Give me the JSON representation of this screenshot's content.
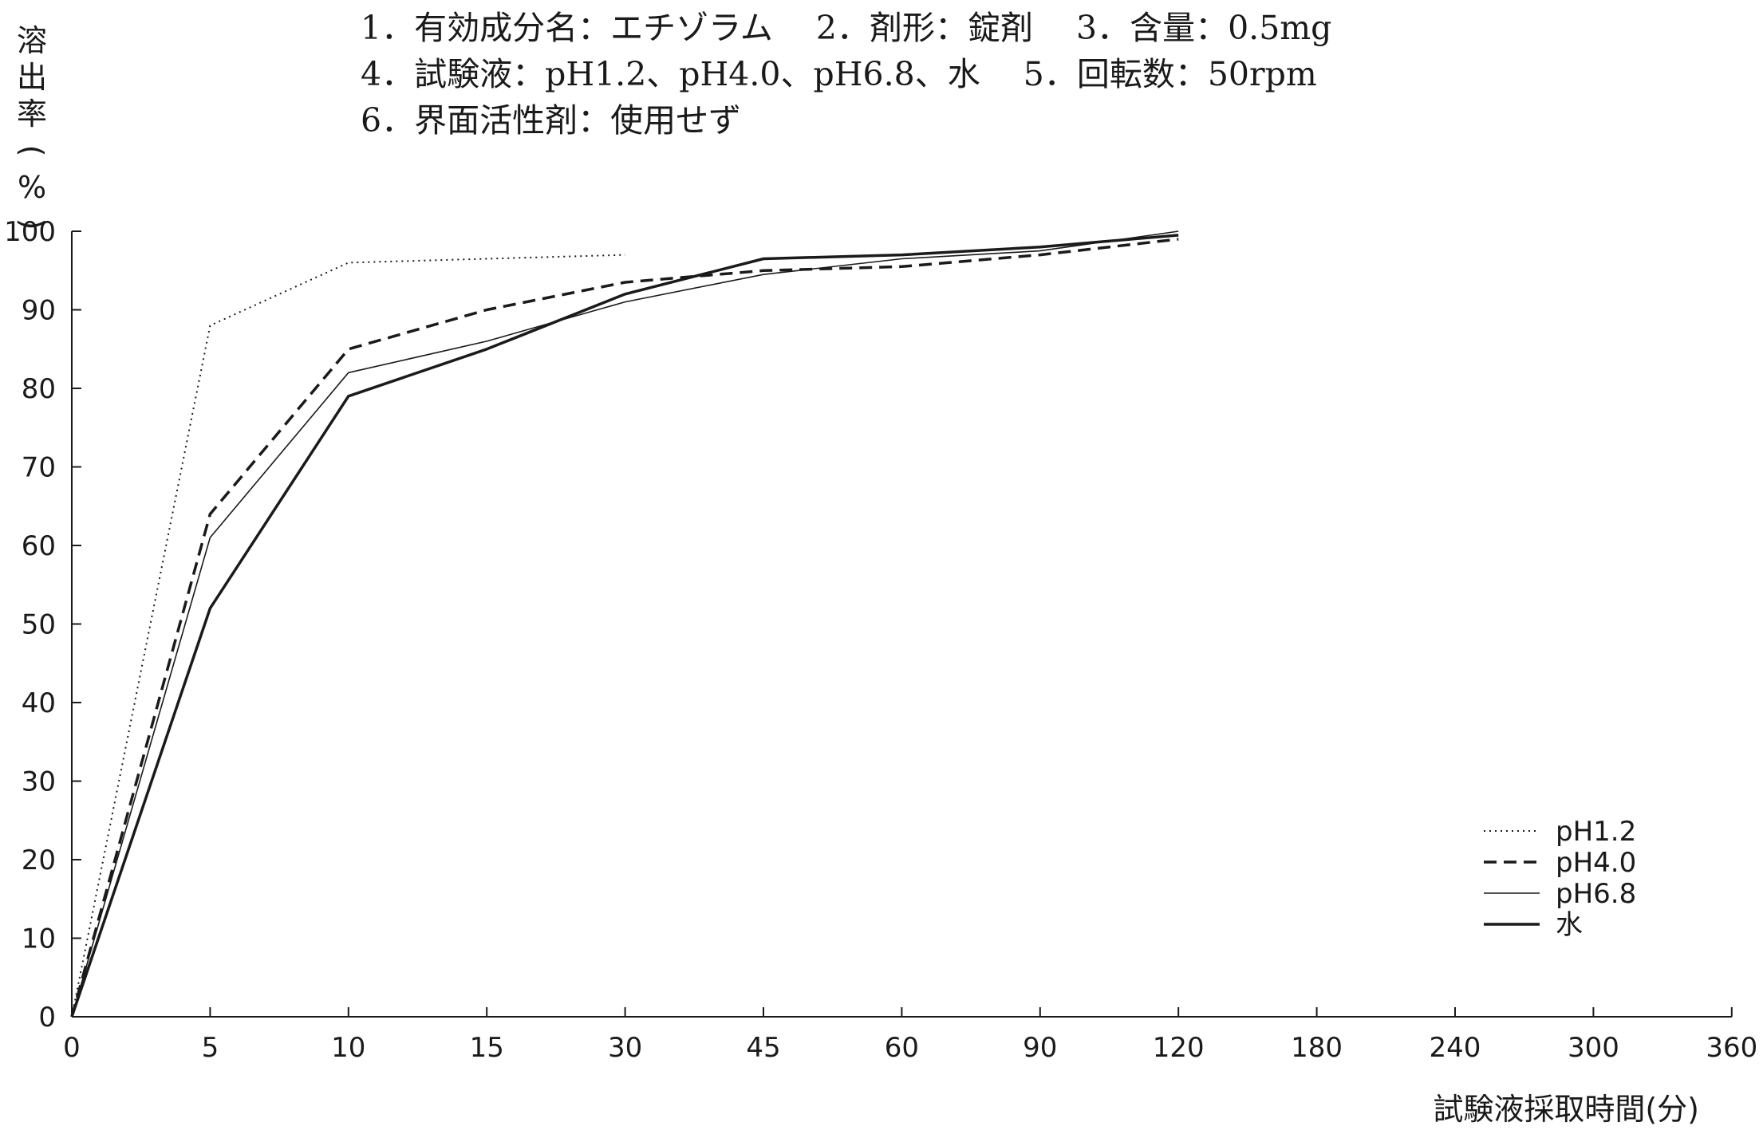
{
  "header": {
    "line1": "1．有効成分名：エチゾラム　 2．剤形：錠剤　 3．含量：0.5mg",
    "line2": "4．試験液：pH1.2、pH4.0、pH6.8、水　 5．回転数：50rpm",
    "line3": "6．界面活性剤：使用せず"
  },
  "chart_data": {
    "type": "line",
    "ylabel": [
      "溶",
      "出",
      "率",
      "(",
      "%",
      ")"
    ],
    "xlabel": "試験液採取時間(分)",
    "categories": [
      "0",
      "5",
      "10",
      "15",
      "30",
      "45",
      "60",
      "90",
      "120",
      "180",
      "240",
      "300",
      "360"
    ],
    "ylim": [
      0,
      100
    ],
    "yticks": [
      "0",
      "10",
      "20",
      "30",
      "40",
      "50",
      "60",
      "70",
      "80",
      "90",
      "100"
    ],
    "legend_position": "bottom-right",
    "series": [
      {
        "name": "pH1.2",
        "style": "dotted",
        "x": [
          "0",
          "5",
          "10",
          "30"
        ],
        "values": [
          0,
          88,
          96,
          97
        ]
      },
      {
        "name": "pH4.0",
        "style": "dashed",
        "x": [
          "0",
          "5",
          "10",
          "15",
          "30",
          "45",
          "60",
          "90",
          "120"
        ],
        "values": [
          0,
          64,
          85,
          90,
          93.5,
          95,
          95.5,
          97,
          99
        ]
      },
      {
        "name": "pH6.8",
        "style": "thin",
        "x": [
          "0",
          "5",
          "10",
          "15",
          "30",
          "45",
          "60",
          "90",
          "120"
        ],
        "values": [
          0,
          61,
          82,
          86,
          91,
          94.5,
          96.5,
          97.5,
          100
        ]
      },
      {
        "name": "水",
        "style": "thick",
        "x": [
          "0",
          "5",
          "10",
          "15",
          "30",
          "45",
          "60",
          "90",
          "120"
        ],
        "values": [
          0,
          52,
          79,
          85,
          92,
          96.5,
          97,
          98,
          99.5
        ]
      }
    ]
  }
}
